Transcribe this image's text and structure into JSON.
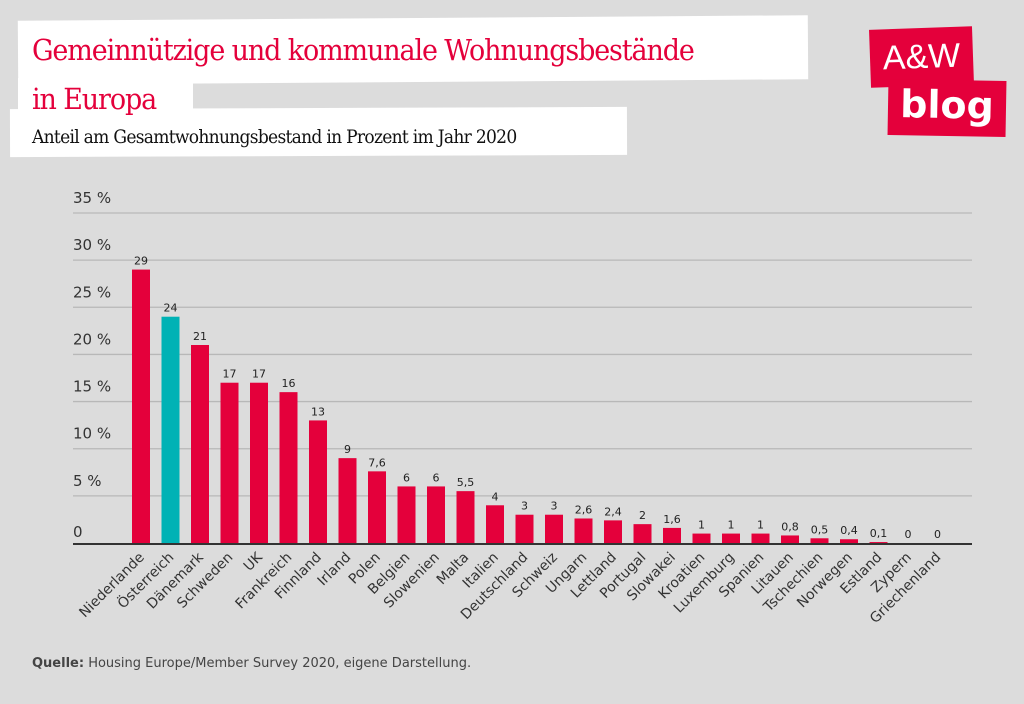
{
  "title": "Gemeinnützige und kommunale Wohnungsbestände in Europa",
  "title_line1": "Gemeinnützige und kommunale Wohnungsbestände",
  "title_line2": "in Europa",
  "subtitle": "Anteil am Gesamtwohnungsbestand in Prozent im Jahr 2020",
  "logo": {
    "line1": "A&W",
    "line2": "blog"
  },
  "source": {
    "label": "Quelle:",
    "text": " Housing Europe/Member Survey 2020, eigene Darstellung."
  },
  "colors": {
    "bar": "#e4003b",
    "highlight": "#00b2b5",
    "background": "#dcdcdc"
  },
  "chart_data": {
    "type": "bar",
    "title": "Gemeinnützige und kommunale Wohnungsbestände in Europa",
    "subtitle": "Anteil am Gesamtwohnungsbestand in Prozent im Jahr 2020",
    "categories": [
      "Niederlande",
      "Österreich",
      "Dänemark",
      "Schweden",
      "UK",
      "Frankreich",
      "Finnland",
      "Irland",
      "Polen",
      "Belgien",
      "Slowenien",
      "Malta",
      "Italien",
      "Deutschland",
      "Schweiz",
      "Ungarn",
      "Lettland",
      "Portugal",
      "Slowakei",
      "Kroatien",
      "Luxemburg",
      "Spanien",
      "Litauen",
      "Tschechien",
      "Norwegen",
      "Estland",
      "Zypern",
      "Griechenland"
    ],
    "values": [
      29,
      24,
      21,
      17,
      17,
      16,
      13,
      9,
      7.6,
      6,
      6,
      5.5,
      4,
      3,
      3,
      2.6,
      2.4,
      2,
      1.6,
      1,
      1,
      1,
      0.8,
      0.5,
      0.4,
      0.1,
      0,
      0
    ],
    "data_labels": [
      "29",
      "24",
      "21",
      "17",
      "17",
      "16",
      "13",
      "9",
      "7,6",
      "6",
      "6",
      "5,5",
      "4",
      "3",
      "3",
      "2,6",
      "2,4",
      "2",
      "1,6",
      "1",
      "1",
      "1",
      "0,8",
      "0,5",
      "0,4",
      "0,1",
      "0",
      "0"
    ],
    "highlight": [
      "Österreich"
    ],
    "ylim": [
      0,
      35
    ],
    "yticks": [
      0,
      5,
      10,
      15,
      20,
      25,
      30,
      35
    ],
    "ytick_labels": [
      "0",
      "5 %",
      "10 %",
      "15 %",
      "20 %",
      "25 %",
      "30 %",
      "35 %"
    ],
    "xlabel": "",
    "ylabel": "",
    "grid": true
  }
}
